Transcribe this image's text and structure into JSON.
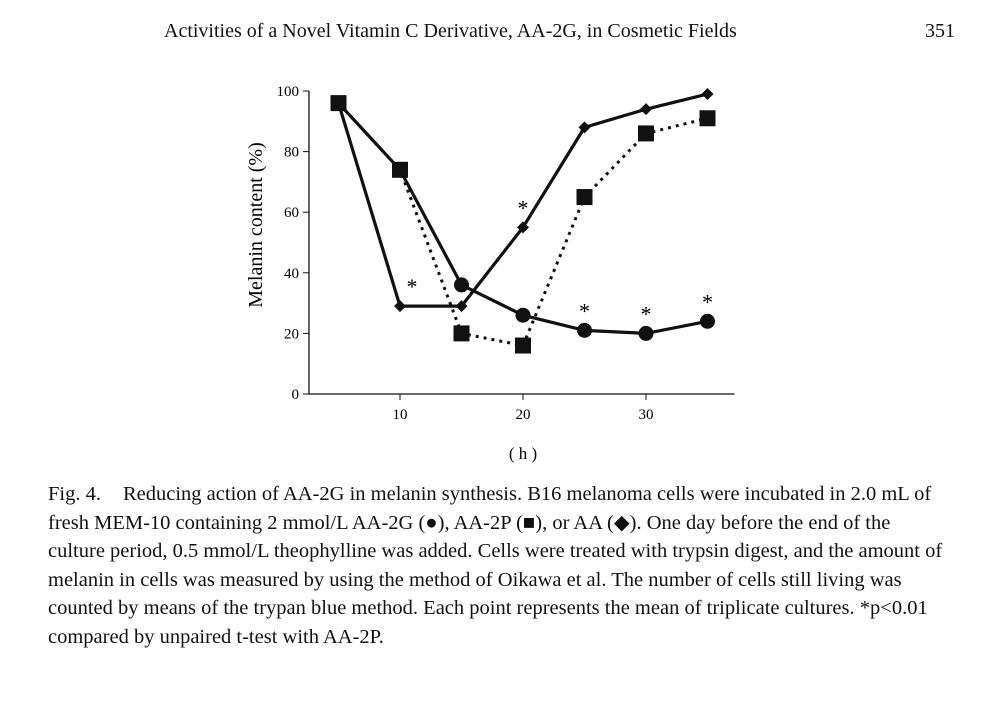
{
  "header": {
    "title": "Activities of a Novel Vitamin C Derivative, AA-2G, in Cosmetic Fields",
    "page_number": "351"
  },
  "chart_data": {
    "type": "line",
    "title": "",
    "xlabel": "( h )",
    "ylabel": "Melanin content (%)",
    "xlim": [
      2.6,
      37.2
    ],
    "ylim": [
      0,
      100
    ],
    "xticks": [
      10,
      20,
      30
    ],
    "yticks": [
      0,
      20,
      40,
      60,
      80,
      100
    ],
    "x": [
      5,
      10,
      15,
      20,
      25,
      30,
      35
    ],
    "series": [
      {
        "name": "AA-2G",
        "marker": "circle",
        "style": "solid",
        "values": [
          96,
          74,
          36,
          26,
          21,
          20,
          24
        ]
      },
      {
        "name": "AA-2P",
        "marker": "square",
        "style": "dotted",
        "values": [
          96,
          74,
          20,
          16,
          65,
          86,
          91
        ]
      },
      {
        "name": "AA",
        "marker": "diamond",
        "style": "solid",
        "values": [
          96,
          29,
          29,
          55,
          88,
          94,
          99
        ]
      }
    ],
    "annotations": [
      {
        "text": "*",
        "x": 10,
        "y": 29
      },
      {
        "text": "*",
        "x": 20,
        "y": 55
      },
      {
        "text": "*",
        "x": 25,
        "y": 21
      },
      {
        "text": "*",
        "x": 30,
        "y": 20
      },
      {
        "text": "*",
        "x": 35,
        "y": 24
      }
    ],
    "grid": false
  },
  "caption": {
    "label": "Fig. 4.",
    "text": "Reducing action of AA-2G in melanin synthesis. B16 melanoma cells were incubated in 2.0 mL of fresh MEM-10 containing 2 mmol/L AA-2G (●), AA-2P (■), or AA (◆). One day before the end of the culture period, 0.5 mmol/L theophylline was added. Cells were treated with trypsin digest, and the amount of melanin in cells was measured by using the method of Oikawa et al. The number of cells still living was counted by means of the trypan blue method. Each point represents the mean of triplicate cultures. *p<0.01 compared by unpaired t-test with AA-2P."
  }
}
